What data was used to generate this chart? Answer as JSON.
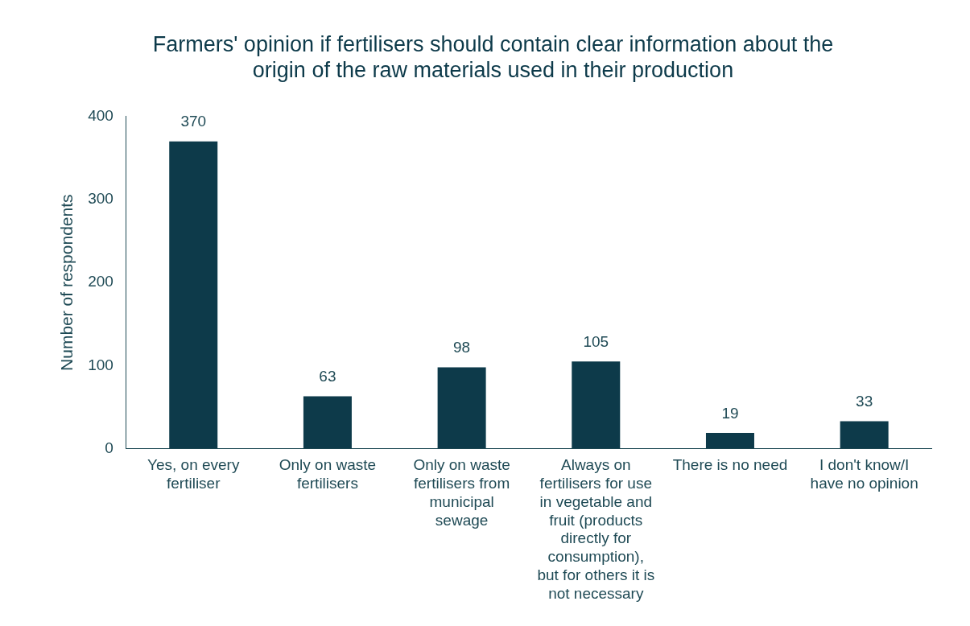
{
  "chart_data": {
    "type": "bar",
    "title": "Farmers' opinion if fertilisers should contain clear information about the origin of the raw materials used in their production",
    "ylabel": "Number of respondents",
    "categories": [
      "Yes, on every fertiliser",
      "Only on waste fertilisers",
      "Only on waste fertilisers from municipal sewage",
      "Always on fertilisers for use in vegetable and fruit (products directly for consumption), but for others it is not necessary",
      "There is no need",
      "I don't know/I have no opinion"
    ],
    "values": [
      370,
      63,
      98,
      105,
      19,
      33
    ],
    "color": "#0d3a4a",
    "ylim": [
      0,
      400
    ],
    "yticks": [
      0,
      100,
      200,
      300,
      400
    ],
    "grid": false,
    "legend": false,
    "data_labels": true
  }
}
